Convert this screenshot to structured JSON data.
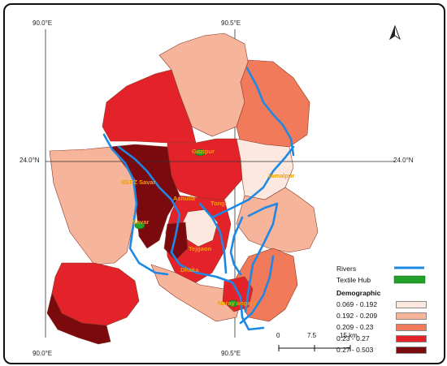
{
  "coords": {
    "top_left": "90.0°E",
    "top_right": "90.5°E",
    "bottom_left": "90.0°E",
    "bottom_right": "90.5°E",
    "left_lat": "24.0°N",
    "right_lat": "24.0°N"
  },
  "places": {
    "gazipur": "Gazipur",
    "jamalpur": "Jamalpur",
    "bepz": "BEPZ Savar",
    "ashulia": "Ashulia",
    "tongi": "Tongi",
    "savar": "Savar",
    "tejgaon": "Tejgaon",
    "dhaka": "Dhaka",
    "narayanganj": "Naray anganj"
  },
  "legend": {
    "rivers": "Rivers",
    "textile_hub": "Textile Hub",
    "title": "Demographic",
    "classes": [
      {
        "label": "0.069 - 0.192",
        "color": "#fde8df"
      },
      {
        "label": "0.192 - 0.209",
        "color": "#f6b49a"
      },
      {
        "label": "0.209 - 0.23",
        "color": "#f07a5a"
      },
      {
        "label": "0.23 - 0.27",
        "color": "#e4222a"
      },
      {
        "label": "0.27 - 0.503",
        "color": "#7a0a0e"
      }
    ],
    "river_color": "#1e88e5",
    "hub_color": "#22a02a"
  },
  "scale": {
    "zero": "0",
    "mid": "7.5",
    "end": "15 km"
  },
  "north_arrow": "north-arrow-icon"
}
